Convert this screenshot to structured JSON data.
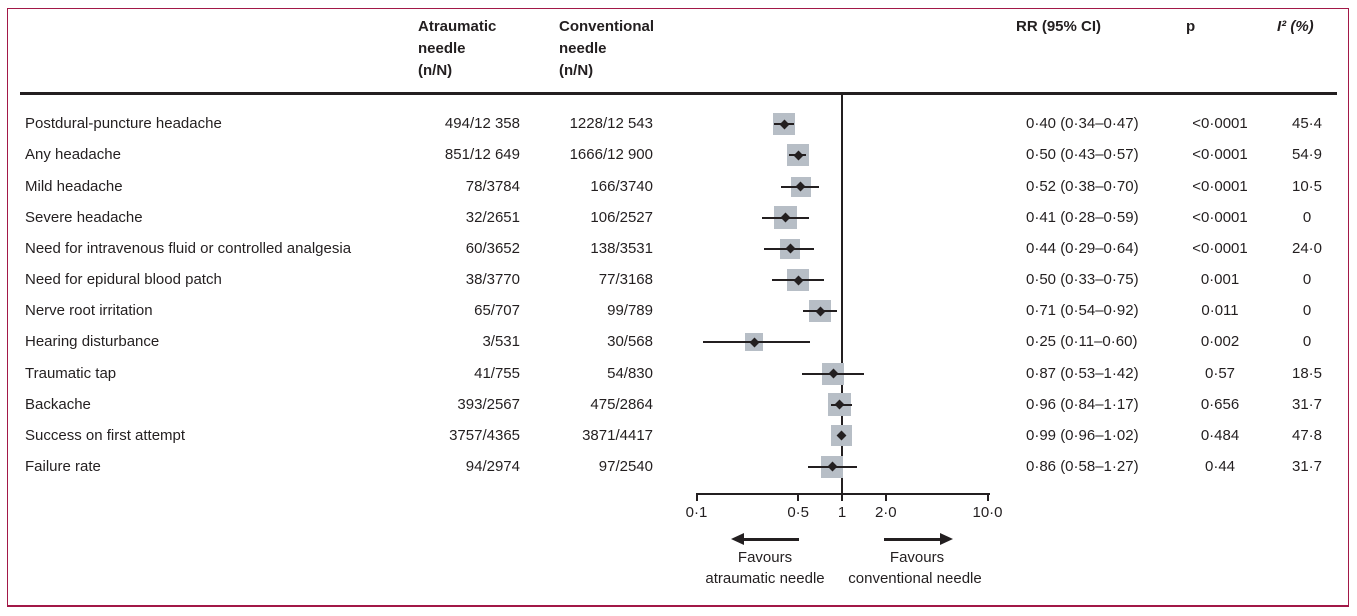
{
  "colors": {
    "frame": "#a21847",
    "text": "#231f20",
    "square": "#b7bec6"
  },
  "headers": {
    "atraumatic": "Atraumatic\nneedle\n(n/N)",
    "conventional": "Conventional\nneedle\n(n/N)",
    "rr": "RR (95% CI)",
    "p": "p",
    "i2": "I² (%)"
  },
  "chart_data": {
    "type": "forest",
    "x_scale": "log10",
    "xlim": [
      0.1,
      10
    ],
    "vline_value": 1,
    "ticks": [
      {
        "label": "0·1",
        "value": 0.1
      },
      {
        "label": "0·5",
        "value": 0.5
      },
      {
        "label": "1",
        "value": 1
      },
      {
        "label": "2·0",
        "value": 2.0
      },
      {
        "label": "10·0",
        "value": 10.0
      }
    ],
    "favours": {
      "left": [
        "Favours",
        "atraumatic needle"
      ],
      "right": [
        "Favours",
        "conventional needle"
      ]
    },
    "rows": [
      {
        "label": "Postdural-puncture headache",
        "atraumatic": "494/12 358",
        "conventional": "1228/12 543",
        "rr": 0.4,
        "ci_low": 0.34,
        "ci_high": 0.47,
        "rr_text": "0·40 (0·34–0·47)",
        "p": "<0·0001",
        "i2": "45·4",
        "weight": 22
      },
      {
        "label": "Any headache",
        "atraumatic": "851/12 649",
        "conventional": "1666/12 900",
        "rr": 0.5,
        "ci_low": 0.43,
        "ci_high": 0.57,
        "rr_text": "0·50 (0·43–0·57)",
        "p": "<0·0001",
        "i2": "54·9",
        "weight": 22
      },
      {
        "label": "Mild headache",
        "atraumatic": "78/3784",
        "conventional": "166/3740",
        "rr": 0.52,
        "ci_low": 0.38,
        "ci_high": 0.7,
        "rr_text": "0·52 (0·38–0·70)",
        "p": "<0·0001",
        "i2": "10·5",
        "weight": 20
      },
      {
        "label": "Severe headache",
        "atraumatic": "32/2651",
        "conventional": "106/2527",
        "rr": 0.41,
        "ci_low": 0.28,
        "ci_high": 0.59,
        "rr_text": "0·41 (0·28–0·59)",
        "p": "<0·0001",
        "i2": "0",
        "weight": 23
      },
      {
        "label": "Need for intravenous fluid or controlled analgesia",
        "atraumatic": "60/3652",
        "conventional": "138/3531",
        "rr": 0.44,
        "ci_low": 0.29,
        "ci_high": 0.64,
        "rr_text": "0·44 (0·29–0·64)",
        "p": "<0·0001",
        "i2": "24·0",
        "weight": 20
      },
      {
        "label": "Need for epidural blood patch",
        "atraumatic": "38/3770",
        "conventional": "77/3168",
        "rr": 0.5,
        "ci_low": 0.33,
        "ci_high": 0.75,
        "rr_text": "0·50 (0·33–0·75)",
        "p": "0·001",
        "i2": "0",
        "weight": 22
      },
      {
        "label": "Nerve root irritation",
        "atraumatic": "65/707",
        "conventional": "99/789",
        "rr": 0.71,
        "ci_low": 0.54,
        "ci_high": 0.92,
        "rr_text": "0·71 (0·54–0·92)",
        "p": "0·011",
        "i2": "0",
        "weight": 22
      },
      {
        "label": "Hearing disturbance",
        "atraumatic": "3/531",
        "conventional": "30/568",
        "rr": 0.25,
        "ci_low": 0.11,
        "ci_high": 0.6,
        "rr_text": "0·25 (0·11–0·60)",
        "p": "0·002",
        "i2": "0",
        "weight": 18
      },
      {
        "label": "Traumatic tap",
        "atraumatic": "41/755",
        "conventional": "54/830",
        "rr": 0.87,
        "ci_low": 0.53,
        "ci_high": 1.42,
        "rr_text": "0·87 (0·53–1·42)",
        "p": "0·57",
        "i2": "18·5",
        "weight": 22
      },
      {
        "label": "Backache",
        "atraumatic": "393/2567",
        "conventional": "475/2864",
        "rr": 0.96,
        "ci_low": 0.84,
        "ci_high": 1.17,
        "rr_text": "0·96 (0·84–1·17)",
        "p": "0·656",
        "i2": "31·7",
        "weight": 23
      },
      {
        "label": "Success on first attempt",
        "atraumatic": "3757/4365",
        "conventional": "3871/4417",
        "rr": 0.99,
        "ci_low": 0.96,
        "ci_high": 1.02,
        "rr_text": "0·99 (0·96–1·02)",
        "p": "0·484",
        "i2": "47·8",
        "weight": 21
      },
      {
        "label": "Failure rate",
        "atraumatic": "94/2974",
        "conventional": "97/2540",
        "rr": 0.86,
        "ci_low": 0.58,
        "ci_high": 1.27,
        "rr_text": "0·86 (0·58–1·27)",
        "p": "0·44",
        "i2": "31·7",
        "weight": 22
      }
    ]
  }
}
